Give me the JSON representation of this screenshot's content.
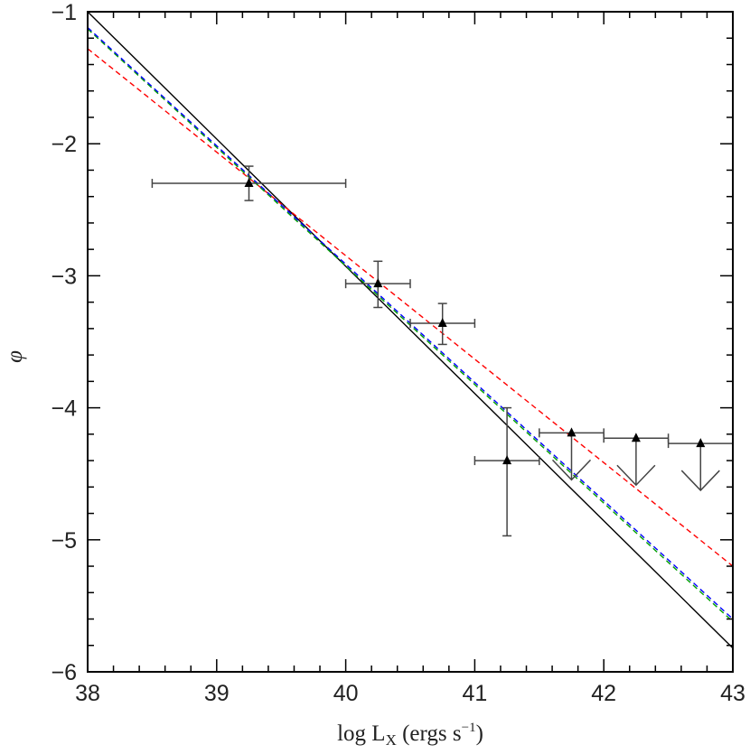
{
  "chart_data": {
    "type": "scatter",
    "title": "",
    "xlabel": "log L",
    "xlabel_sub": "X",
    "xlabel_units_pre": " (ergs s",
    "xlabel_units_sup": "−1",
    "xlabel_units_post": ")",
    "ylabel": "φ",
    "xlim": [
      38,
      43
    ],
    "ylim": [
      -6,
      -1
    ],
    "xticks": [
      "38",
      "39",
      "40",
      "41",
      "42",
      "43"
    ],
    "yticks": [
      "−6",
      "−5",
      "−4",
      "−3",
      "−2",
      "−1"
    ],
    "grid": false,
    "series": [
      {
        "kind": "points",
        "marker": "triangle",
        "color": "#000000",
        "points": [
          {
            "x": 39.25,
            "y": -2.3,
            "xerr": [
              0.75,
              0.75
            ],
            "yerr": [
              0.13,
              0.13
            ]
          },
          {
            "x": 40.25,
            "y": -3.06,
            "xerr": [
              0.25,
              0.25
            ],
            "yerr": [
              0.18,
              0.17
            ]
          },
          {
            "x": 40.75,
            "y": -3.36,
            "xerr": [
              0.25,
              0.25
            ],
            "yerr": [
              0.16,
              0.15
            ]
          },
          {
            "x": 41.25,
            "y": -4.4,
            "xerr": [
              0.25,
              0.25
            ],
            "yerr": [
              0.57,
              0.4
            ]
          }
        ]
      },
      {
        "kind": "upper_limits",
        "marker": "triangle",
        "color": "#000000",
        "points": [
          {
            "x": 41.75,
            "y": -4.19,
            "xerr": [
              0.25,
              0.25
            ]
          },
          {
            "x": 42.25,
            "y": -4.23,
            "xerr": [
              0.25,
              0.25
            ]
          },
          {
            "x": 42.75,
            "y": -4.27,
            "xerr": [
              0.25,
              0.25
            ]
          }
        ]
      },
      {
        "kind": "line",
        "style": "solid",
        "color": "#000000",
        "x": [
          38,
          43
        ],
        "y": [
          -1.0,
          -5.82
        ]
      },
      {
        "kind": "line",
        "style": "dashed",
        "color": "#ff0000",
        "x": [
          38,
          43
        ],
        "y": [
          -1.28,
          -5.2
        ]
      },
      {
        "kind": "line",
        "style": "dashed",
        "color": "#00a000",
        "x": [
          38,
          43
        ],
        "y": [
          -1.13,
          -5.62
        ]
      },
      {
        "kind": "line",
        "style": "dashed",
        "color": "#0000ff",
        "x": [
          38,
          43
        ],
        "y": [
          -1.12,
          -5.6
        ]
      }
    ]
  }
}
